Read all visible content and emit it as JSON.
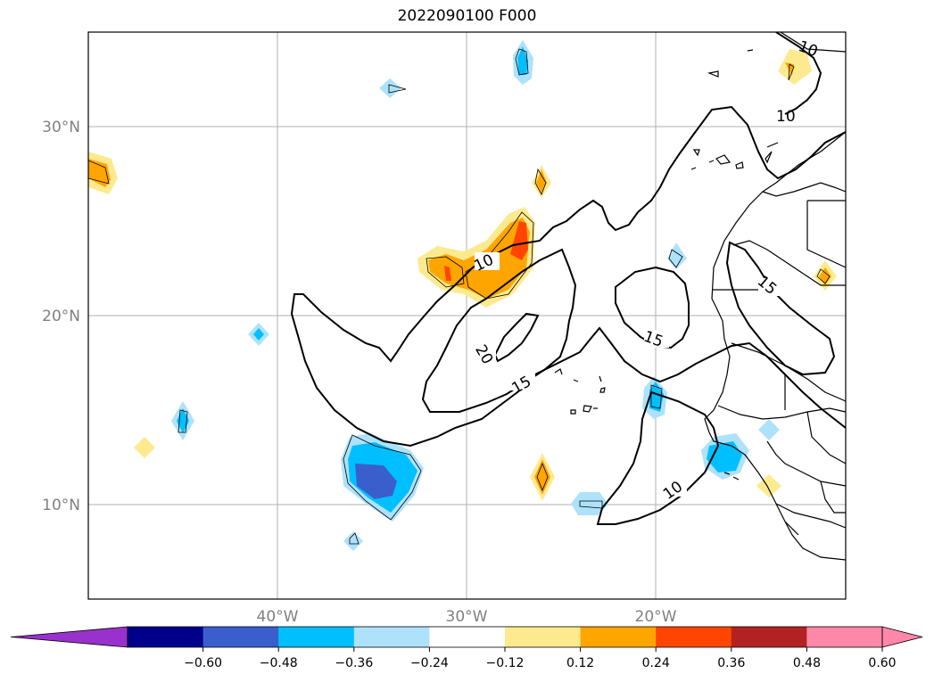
{
  "title": "2022090100 F000",
  "map": {
    "lat_ticks": [
      "30°N",
      "20°N",
      "10°N"
    ],
    "lon_ticks": [
      "40°W",
      "30°W",
      "20°W"
    ],
    "extent": {
      "lon_min": -50,
      "lon_max": -10,
      "lat_min": 5,
      "lat_max": 35
    },
    "grid": true
  },
  "contours": {
    "levels": [
      "10",
      "15",
      "20"
    ],
    "labels": [
      {
        "text": "10"
      },
      {
        "text": "10"
      },
      {
        "text": "10"
      },
      {
        "text": "10"
      },
      {
        "text": "15"
      },
      {
        "text": "15"
      },
      {
        "text": "15"
      },
      {
        "text": "20"
      }
    ]
  },
  "colorbar": {
    "ticks": [
      "−0.60",
      "−0.48",
      "−0.36",
      "−0.24",
      "−0.12",
      "0.12",
      "0.24",
      "0.36",
      "0.48",
      "0.60"
    ],
    "colors": [
      "#9932cc",
      "#00008b",
      "#3a5fcd",
      "#00bfff",
      "#aee2fa",
      "#ffffff",
      "#fdea8e",
      "#ffa500",
      "#ff4500",
      "#b22222",
      "#ff88aa"
    ],
    "extend": "both"
  }
}
